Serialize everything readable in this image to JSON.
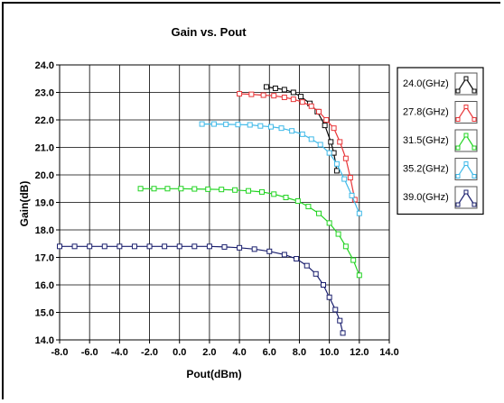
{
  "chart_data": {
    "type": "line",
    "title": "Gain vs. Pout",
    "xlabel": "Pout(dBm)",
    "ylabel": "Gain(dB)",
    "xlim": [
      -8.0,
      14.0
    ],
    "ylim": [
      14.0,
      24.0
    ],
    "x_ticks": [
      "-8.0",
      "-6.0",
      "-4.0",
      "-2.0",
      "0.0",
      "2.0",
      "4.0",
      "6.0",
      "8.0",
      "10.0",
      "12.0",
      "14.0"
    ],
    "y_ticks": [
      "24.0",
      "23.0",
      "22.0",
      "21.0",
      "20.0",
      "19.0",
      "18.0",
      "17.0",
      "16.0",
      "15.0",
      "14.0"
    ],
    "grid": true,
    "legend_position": "right",
    "series": [
      {
        "name": "24.0(GHz)",
        "color": "#0a0a0a",
        "x": [
          5.8,
          6.4,
          7.0,
          7.6,
          8.1,
          8.7,
          9.2,
          9.7,
          10.1,
          10.3,
          10.5
        ],
        "y": [
          23.2,
          23.15,
          23.1,
          23.0,
          22.85,
          22.6,
          22.3,
          21.8,
          21.2,
          20.8,
          20.15
        ]
      },
      {
        "name": "27.8(GHz)",
        "color": "#e8373a",
        "x": [
          4.0,
          4.8,
          5.6,
          6.3,
          7.0,
          7.6,
          8.2,
          8.8,
          9.3,
          9.8,
          10.3,
          10.7,
          11.1,
          11.4,
          11.7
        ],
        "y": [
          22.95,
          22.93,
          22.9,
          22.88,
          22.82,
          22.75,
          22.65,
          22.5,
          22.3,
          22.0,
          21.7,
          21.2,
          20.6,
          19.9,
          19.1
        ]
      },
      {
        "name": "31.5(GHz)",
        "color": "#22d422",
        "x": [
          -2.6,
          -1.7,
          -0.8,
          0.1,
          1.0,
          1.9,
          2.8,
          3.7,
          4.6,
          5.5,
          6.3,
          7.1,
          7.9,
          8.6,
          9.3,
          10.0,
          10.6,
          11.1,
          11.6,
          12.0
        ],
        "y": [
          19.5,
          19.5,
          19.5,
          19.5,
          19.49,
          19.48,
          19.47,
          19.45,
          19.42,
          19.38,
          19.3,
          19.18,
          19.05,
          18.85,
          18.6,
          18.25,
          17.85,
          17.4,
          16.9,
          16.35
        ]
      },
      {
        "name": "35.2(GHz)",
        "color": "#3fb9e8",
        "x": [
          1.5,
          2.3,
          3.1,
          3.9,
          4.7,
          5.4,
          6.1,
          6.8,
          7.5,
          8.2,
          8.8,
          9.4,
          10.0,
          10.5,
          11.0,
          11.5,
          12.0
        ],
        "y": [
          21.85,
          21.85,
          21.84,
          21.83,
          21.82,
          21.78,
          21.75,
          21.7,
          21.6,
          21.48,
          21.3,
          21.1,
          20.8,
          20.4,
          19.85,
          19.25,
          18.6
        ]
      },
      {
        "name": "39.0(GHz)",
        "color": "#1a1f6e",
        "x": [
          -8.0,
          -7.0,
          -6.0,
          -5.0,
          -4.0,
          -3.0,
          -2.0,
          -1.0,
          0.0,
          1.0,
          2.0,
          3.0,
          4.0,
          5.0,
          6.0,
          7.0,
          7.8,
          8.5,
          9.1,
          9.6,
          10.0,
          10.4,
          10.7,
          10.9
        ],
        "y": [
          17.4,
          17.4,
          17.4,
          17.4,
          17.4,
          17.4,
          17.4,
          17.4,
          17.4,
          17.4,
          17.4,
          17.38,
          17.35,
          17.3,
          17.22,
          17.1,
          16.95,
          16.7,
          16.4,
          16.0,
          15.55,
          15.1,
          14.7,
          14.25
        ]
      }
    ]
  }
}
